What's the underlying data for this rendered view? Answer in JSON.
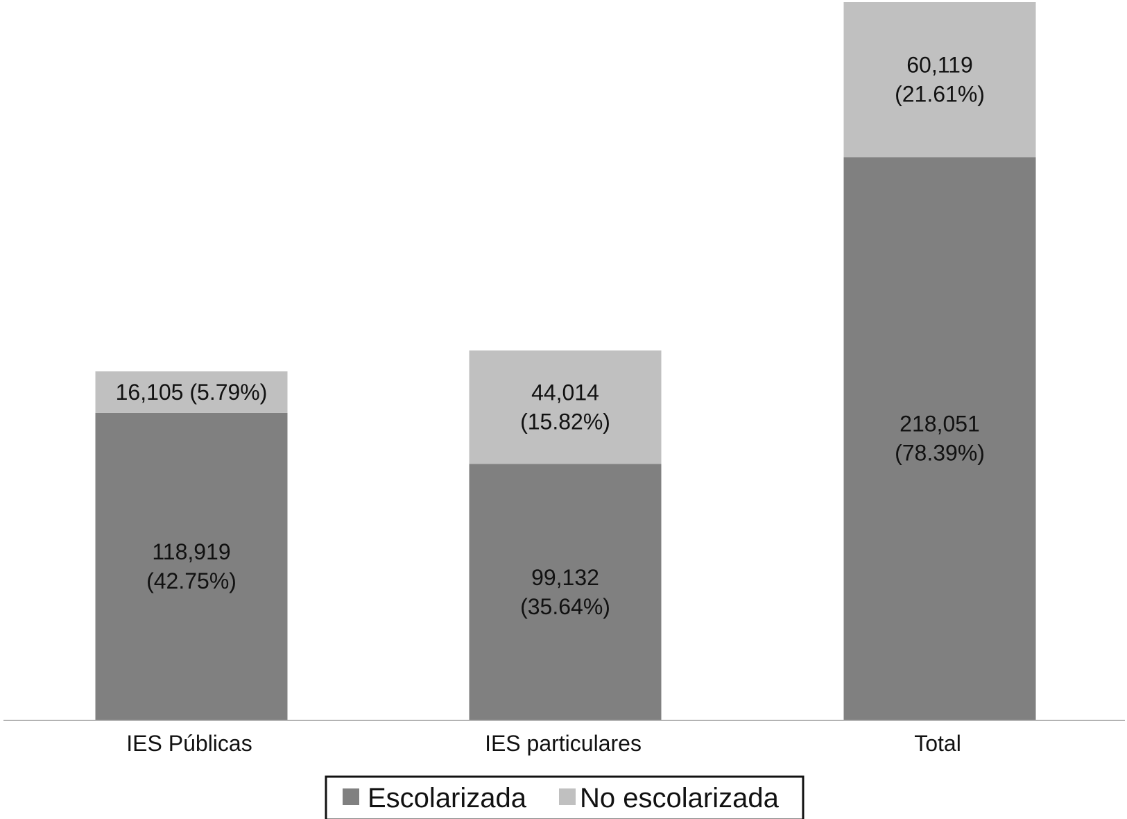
{
  "chart_data": {
    "type": "bar",
    "stacked": true,
    "categories": [
      "IES Públicas",
      "IES particulares",
      "Total"
    ],
    "series": [
      {
        "name": "Escolarizada",
        "color": "#808080",
        "values": [
          118919,
          99132,
          218051
        ],
        "labels": [
          [
            "118,919",
            "(42.75%)"
          ],
          [
            "99,132",
            "(35.64%)"
          ],
          [
            "218,051",
            "(78.39%)"
          ]
        ]
      },
      {
        "name": "No escolarizada",
        "color": "#c0c0c0",
        "values": [
          16105,
          44014,
          60119
        ],
        "labels": [
          [
            "16,105 (5.79%)"
          ],
          [
            "44,014",
            "(15.82%)"
          ],
          [
            "60,119",
            "(21.61%)"
          ]
        ]
      }
    ],
    "ylim": [
      0,
      278170
    ],
    "grid": false,
    "legend_position": "bottom"
  }
}
